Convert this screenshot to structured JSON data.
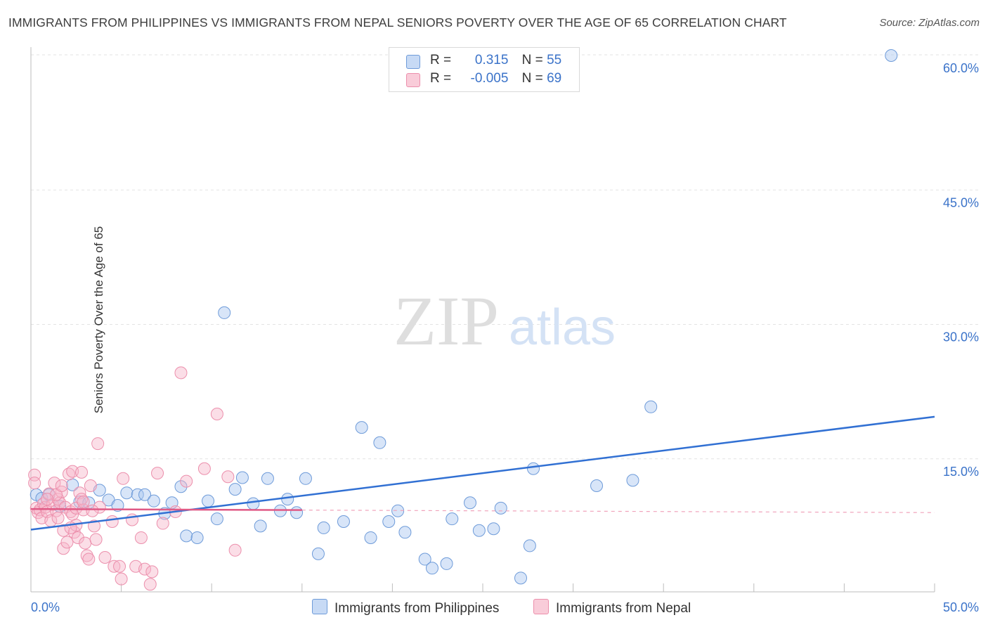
{
  "header": {
    "title": "IMMIGRANTS FROM PHILIPPINES VS IMMIGRANTS FROM NEPAL SENIORS POVERTY OVER THE AGE OF 65 CORRELATION CHART",
    "source": "Source: ZipAtlas.com"
  },
  "watermark": {
    "zip": "ZIP",
    "atlas": "atlas"
  },
  "legend": {
    "rows": [
      {
        "r_label": "R =",
        "r_value": "0.315",
        "n_label": "N =",
        "n_value": "55",
        "color": "#a9c6f0"
      },
      {
        "r_label": "R =",
        "r_value": "-0.005",
        "n_label": "N =",
        "n_value": "69",
        "color": "#f7b6c9"
      }
    ]
  },
  "chart_data": {
    "type": "scatter",
    "title": "IMMIGRANTS FROM PHILIPPINES VS IMMIGRANTS FROM NEPAL SENIORS POVERTY OVER THE AGE OF 65 CORRELATION CHART",
    "xlabel": "",
    "ylabel": "Seniors Poverty Over the Age of 65",
    "xlim": [
      0,
      50
    ],
    "ylim": [
      0,
      61
    ],
    "x_tick_labels": [
      "0.0%",
      "50.0%"
    ],
    "y_ticks": [
      15,
      30,
      45,
      60
    ],
    "y_tick_labels": [
      "15.0%",
      "30.0%",
      "45.0%",
      "60.0%"
    ],
    "grid": true,
    "series": [
      {
        "name": "Immigrants from Philippines",
        "color": "#a9c6f0",
        "stroke": "#6e9bd9",
        "trend_color": "#3170d3",
        "trend": {
          "x": [
            0,
            50
          ],
          "y": [
            7.1,
            19.7
          ],
          "dashed_from": null
        },
        "points": [
          [
            0.3,
            11.0
          ],
          [
            0.6,
            10.6
          ],
          [
            1.0,
            11.0
          ],
          [
            1.6,
            9.7
          ],
          [
            2.3,
            12.1
          ],
          [
            2.7,
            10.2
          ],
          [
            3.2,
            10.1
          ],
          [
            3.8,
            11.5
          ],
          [
            4.3,
            10.4
          ],
          [
            4.8,
            9.8
          ],
          [
            5.3,
            11.2
          ],
          [
            5.9,
            11.0
          ],
          [
            6.3,
            11.0
          ],
          [
            7.4,
            8.9
          ],
          [
            6.8,
            10.3
          ],
          [
            7.8,
            10.1
          ],
          [
            8.3,
            11.9
          ],
          [
            8.6,
            6.4
          ],
          [
            9.2,
            6.2
          ],
          [
            9.8,
            10.3
          ],
          [
            10.3,
            8.3
          ],
          [
            10.7,
            31.3
          ],
          [
            11.3,
            11.6
          ],
          [
            11.7,
            12.9
          ],
          [
            12.3,
            10.0
          ],
          [
            12.7,
            7.5
          ],
          [
            13.1,
            12.8
          ],
          [
            13.8,
            9.2
          ],
          [
            14.2,
            10.5
          ],
          [
            14.7,
            9.0
          ],
          [
            15.2,
            12.8
          ],
          [
            15.9,
            4.4
          ],
          [
            16.2,
            7.3
          ],
          [
            17.3,
            8.0
          ],
          [
            18.3,
            18.5
          ],
          [
            18.8,
            6.2
          ],
          [
            19.3,
            16.8
          ],
          [
            19.8,
            8.0
          ],
          [
            20.3,
            9.2
          ],
          [
            20.7,
            6.8
          ],
          [
            21.8,
            3.8
          ],
          [
            22.2,
            2.8
          ],
          [
            23.0,
            3.3
          ],
          [
            23.3,
            8.3
          ],
          [
            24.3,
            10.1
          ],
          [
            24.8,
            7.0
          ],
          [
            25.6,
            7.2
          ],
          [
            26.0,
            9.5
          ],
          [
            27.1,
            1.7
          ],
          [
            27.6,
            5.3
          ],
          [
            27.8,
            13.9
          ],
          [
            31.3,
            12.0
          ],
          [
            33.3,
            12.6
          ],
          [
            34.3,
            20.8
          ],
          [
            47.6,
            60.0
          ]
        ]
      },
      {
        "name": "Immigrants from Nepal",
        "color": "#f7b6c9",
        "stroke": "#ec8fac",
        "trend_color": "#e05a86",
        "trend": {
          "x": [
            0,
            50
          ],
          "y": [
            9.4,
            9.0
          ],
          "dashed_from": 15
        },
        "points": [
          [
            0.2,
            13.2
          ],
          [
            0.2,
            12.3
          ],
          [
            0.3,
            9.5
          ],
          [
            0.4,
            9.0
          ],
          [
            0.5,
            9.3
          ],
          [
            0.6,
            8.4
          ],
          [
            0.7,
            10.0
          ],
          [
            0.8,
            9.6
          ],
          [
            0.9,
            9.1
          ],
          [
            1.0,
            11.1
          ],
          [
            1.1,
            8.1
          ],
          [
            1.2,
            9.9
          ],
          [
            1.3,
            12.3
          ],
          [
            1.4,
            9.2
          ],
          [
            1.5,
            10.5
          ],
          [
            1.5,
            8.4
          ],
          [
            1.6,
            10.1
          ],
          [
            1.7,
            11.3
          ],
          [
            1.8,
            7.0
          ],
          [
            1.8,
            5.0
          ],
          [
            1.9,
            9.6
          ],
          [
            2.0,
            5.7
          ],
          [
            2.1,
            13.3
          ],
          [
            2.2,
            9.1
          ],
          [
            2.3,
            13.6
          ],
          [
            2.3,
            8.8
          ],
          [
            2.4,
            6.8
          ],
          [
            2.5,
            9.5
          ],
          [
            2.5,
            7.6
          ],
          [
            2.6,
            6.2
          ],
          [
            2.7,
            11.2
          ],
          [
            2.8,
            13.5
          ],
          [
            2.8,
            10.5
          ],
          [
            2.9,
            9.3
          ],
          [
            3.0,
            5.6
          ],
          [
            3.1,
            4.2
          ],
          [
            3.2,
            3.8
          ],
          [
            3.3,
            12.0
          ],
          [
            3.5,
            7.5
          ],
          [
            3.7,
            16.7
          ],
          [
            3.8,
            9.6
          ],
          [
            4.1,
            4.0
          ],
          [
            4.6,
            3.0
          ],
          [
            4.9,
            3.0
          ],
          [
            5.1,
            12.8
          ],
          [
            5.6,
            8.2
          ],
          [
            5.8,
            3.0
          ],
          [
            6.1,
            6.2
          ],
          [
            6.3,
            2.7
          ],
          [
            6.7,
            2.4
          ],
          [
            7.0,
            13.4
          ],
          [
            7.3,
            7.8
          ],
          [
            8.0,
            9.1
          ],
          [
            8.3,
            24.6
          ],
          [
            8.6,
            12.5
          ],
          [
            9.6,
            13.9
          ],
          [
            10.3,
            20.0
          ],
          [
            10.9,
            13.0
          ],
          [
            11.3,
            4.8
          ],
          [
            4.5,
            8.0
          ],
          [
            5.0,
            1.6
          ],
          [
            6.6,
            1.0
          ],
          [
            3.4,
            9.2
          ],
          [
            2.2,
            7.3
          ],
          [
            1.4,
            11.0
          ],
          [
            0.9,
            10.5
          ],
          [
            1.7,
            12.0
          ],
          [
            2.9,
            10.2
          ],
          [
            3.6,
            6.0
          ]
        ]
      }
    ]
  },
  "bottom_legend": [
    {
      "label": "Immigrants from Philippines",
      "color": "#a9c6f0"
    },
    {
      "label": "Immigrants from Nepal",
      "color": "#f7b6c9"
    }
  ]
}
